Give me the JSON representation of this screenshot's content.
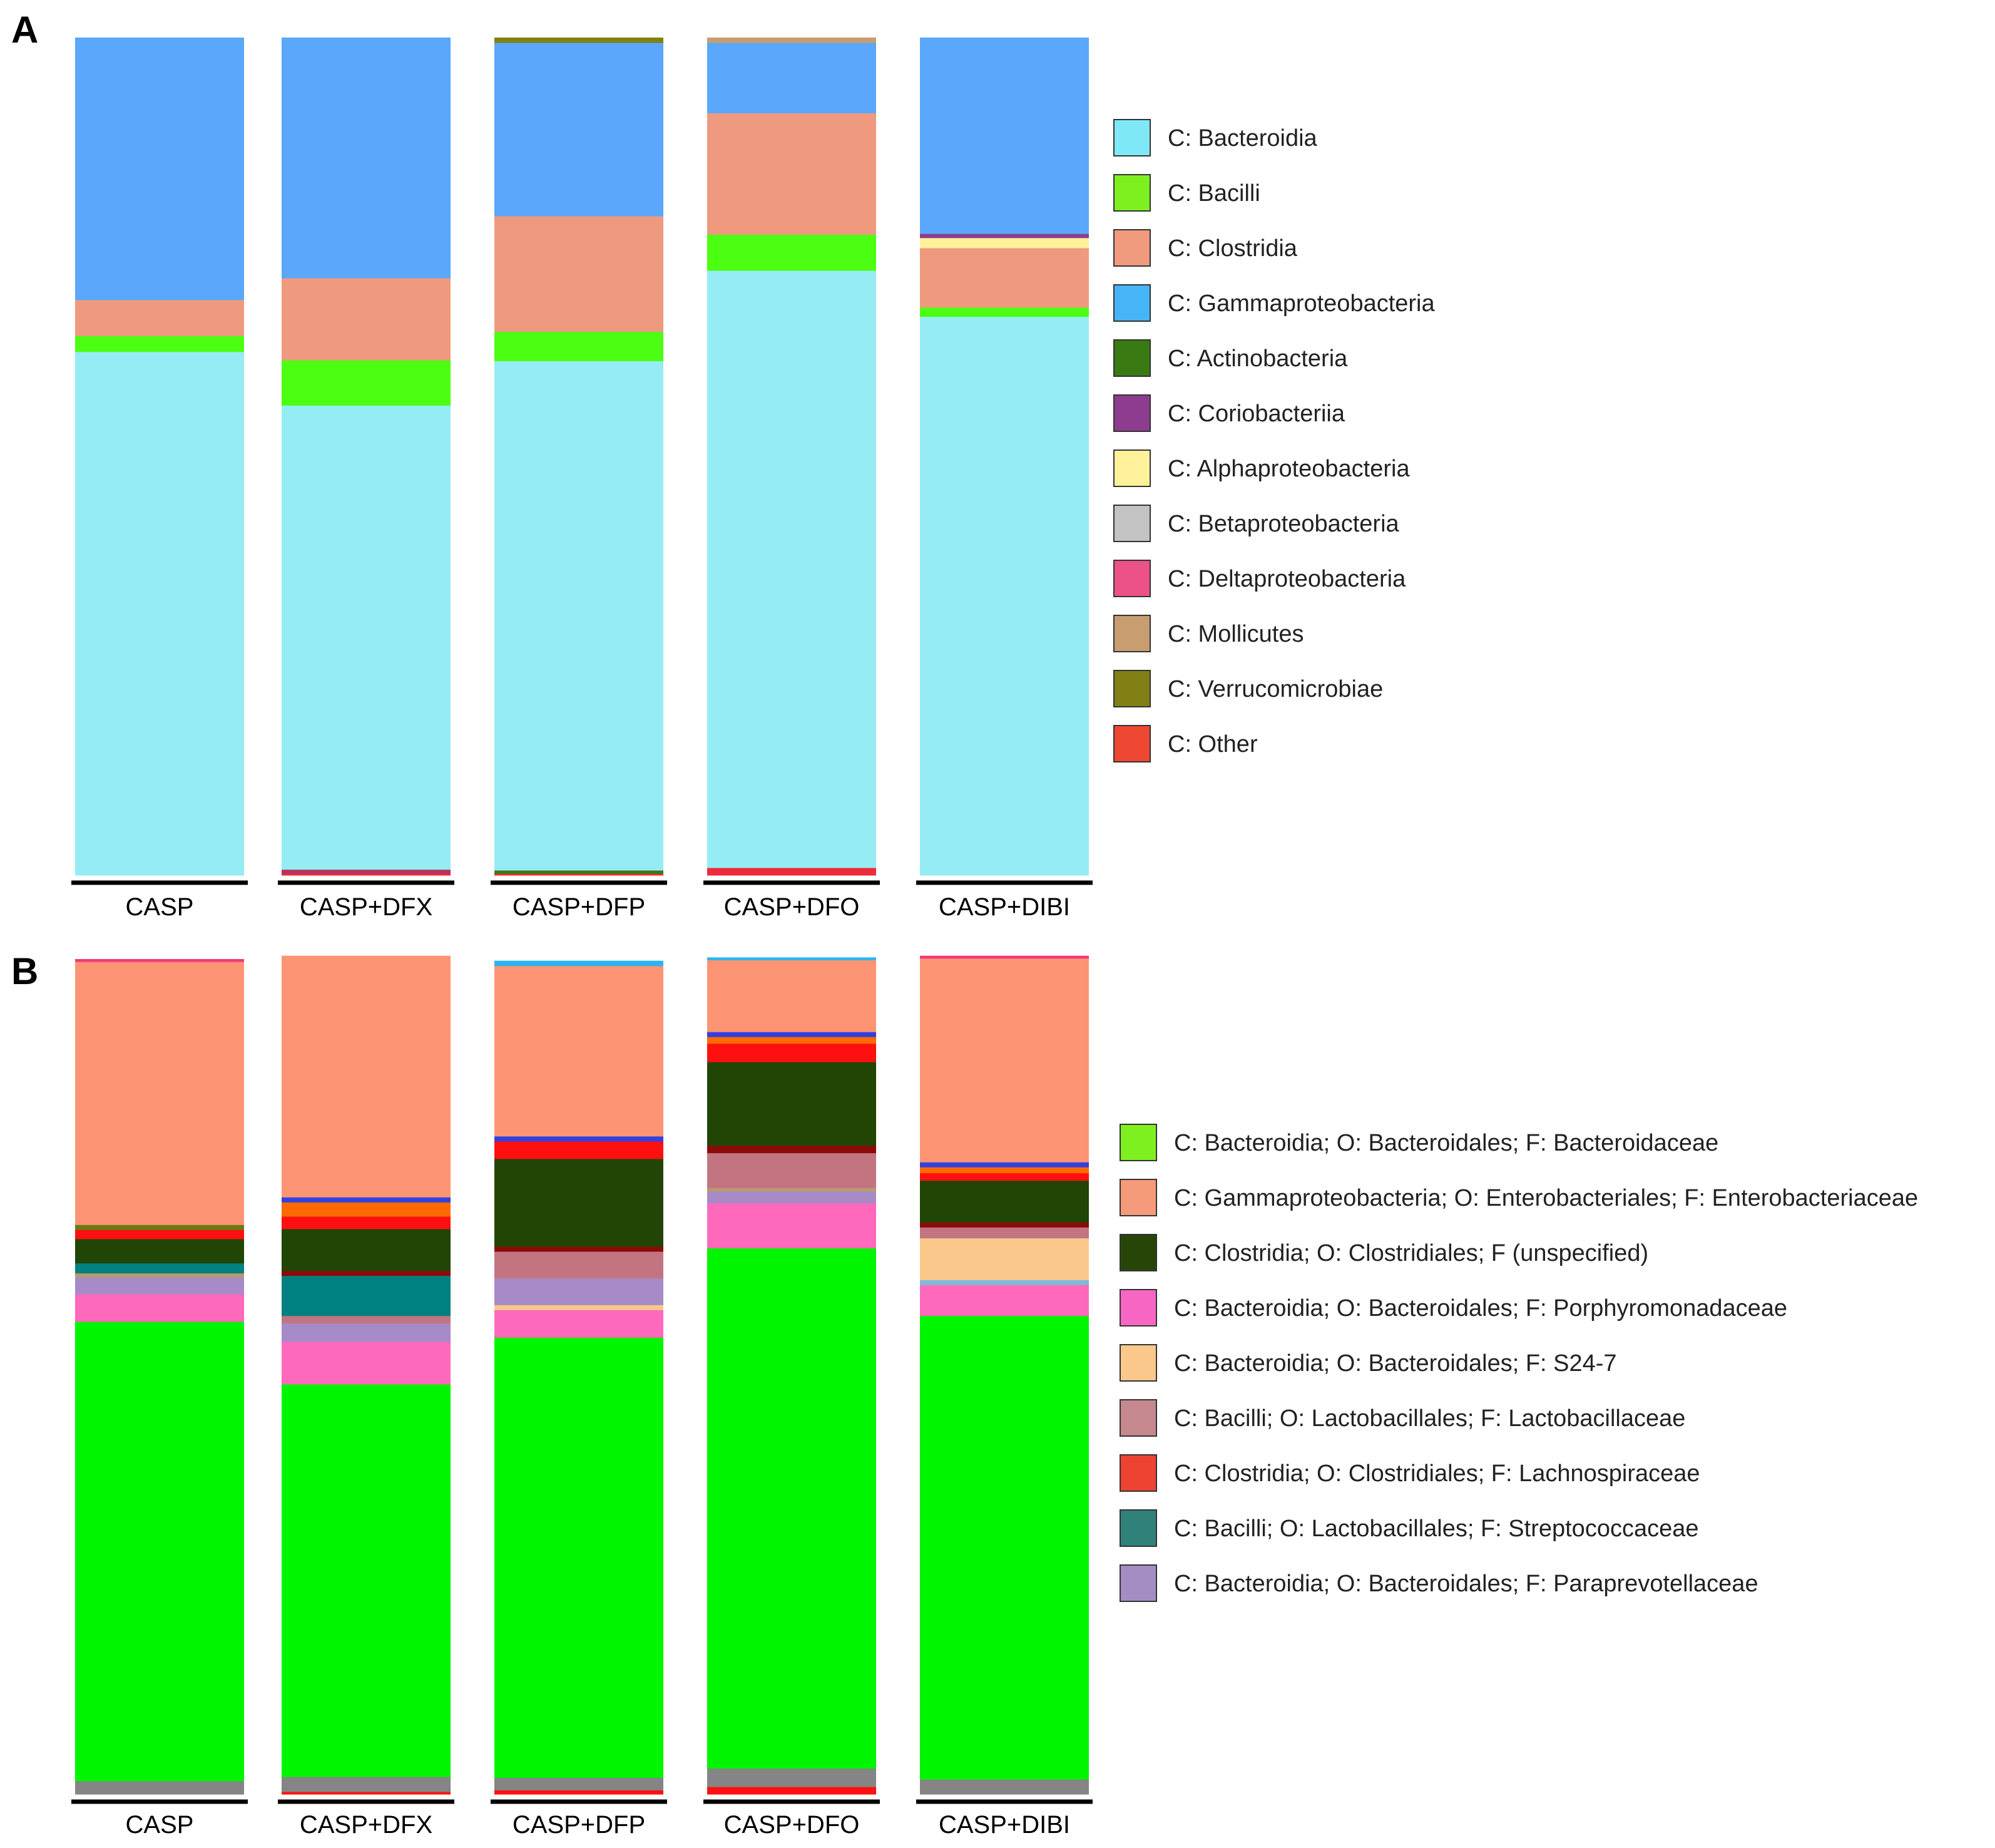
{
  "chart_data": [
    {
      "panel": "A",
      "type": "bar",
      "stacked": true,
      "normalized": true,
      "ylim": [
        0,
        100
      ],
      "categories": [
        "CASP",
        "CASP+DFX",
        "CASP+DFP",
        "CASP+DFO",
        "CASP+DIBI"
      ],
      "legend_position": "right",
      "legend": [
        {
          "label": "C: Bacteroidia",
          "color": "#7fe8f7"
        },
        {
          "label": "C: Bacilli",
          "color": "#7ef01f"
        },
        {
          "label": "C: Clostridia",
          "color": "#f09a7e"
        },
        {
          "label": "C: Gammaproteobacteria",
          "color": "#45b5f7"
        },
        {
          "label": "C: Actinobacteria",
          "color": "#3a7a12"
        },
        {
          "label": "C: Coriobacteriia",
          "color": "#8e3c8f"
        },
        {
          "label": "C: Alphaproteobacteria",
          "color": "#fff19a"
        },
        {
          "label": "C: Betaproteobacteria",
          "color": "#c3c3c3"
        },
        {
          "label": "C: Deltaproteobacteria",
          "color": "#ec5189"
        },
        {
          "label": "C: Mollicutes",
          "color": "#c89d6f"
        },
        {
          "label": "C: Verrucomicrobiae",
          "color": "#808014"
        },
        {
          "label": "C: Other",
          "color": "#ee4732"
        }
      ],
      "series": [
        {
          "name": "C: Other",
          "color": "#ee2a3a",
          "values": [
            0.0,
            0.2,
            0.2,
            0.9,
            0.0
          ]
        },
        {
          "name": "C: Deltaproteobacteria",
          "color": "#b8325e",
          "values": [
            0.0,
            0.5,
            0.0,
            0.0,
            0.0
          ]
        },
        {
          "name": "C: Actinobacteria",
          "color": "#3a7a12",
          "values": [
            0.0,
            0.0,
            0.4,
            0.0,
            0.0
          ]
        },
        {
          "name": "C: Bacteroidia",
          "color": "#96ecf4",
          "values": [
            62.5,
            55.4,
            60.8,
            71.3,
            66.7
          ]
        },
        {
          "name": "C: Bacilli",
          "color": "#4cff12",
          "values": [
            1.9,
            5.4,
            3.5,
            4.3,
            1.1
          ]
        },
        {
          "name": "C: Clostridia",
          "color": "#ef9a7e",
          "values": [
            4.3,
            9.8,
            13.8,
            14.5,
            7.1
          ]
        },
        {
          "name": "C: Alphaproteobacteria",
          "color": "#fff19a",
          "values": [
            0.0,
            0.0,
            0.0,
            0.0,
            1.2
          ]
        },
        {
          "name": "C: Coriobacteriia",
          "color": "#8e3c8f",
          "values": [
            0.0,
            0.0,
            0.0,
            0.0,
            0.5
          ]
        },
        {
          "name": "C: Gammaproteobacteria",
          "color": "#5aa7fb",
          "values": [
            31.3,
            28.7,
            20.7,
            8.4,
            23.4
          ]
        },
        {
          "name": "C: Mollicutes",
          "color": "#c89d6f",
          "values": [
            0.0,
            0.0,
            0.0,
            0.6,
            0.0
          ]
        },
        {
          "name": "C: Verrucomicrobiae",
          "color": "#808014",
          "values": [
            0.0,
            0.0,
            0.6,
            0.0,
            0.0
          ]
        }
      ]
    },
    {
      "panel": "B",
      "type": "bar",
      "stacked": true,
      "normalized": true,
      "ylim": [
        0,
        100
      ],
      "categories": [
        "CASP",
        "CASP+DFX",
        "CASP+DFP",
        "CASP+DFO",
        "CASP+DIBI"
      ],
      "legend_position": "right",
      "legend": [
        {
          "label": "C: Bacteroidia; O: Bacteroidales; F: Bacteroidaceae",
          "color": "#7ef01f"
        },
        {
          "label": "C: Gammaproteobacteria; O: Enterobacteriales; F: Enterobacteriaceae",
          "color": "#f59a7a"
        },
        {
          "label": "C: Clostridia; O: Clostridiales; F (unspecified)",
          "color": "#274507"
        },
        {
          "label": "C: Bacteroidia; O: Bacteroidales; F: Porphyromonadaceae",
          "color": "#f866c4"
        },
        {
          "label": "C: Bacteroidia; O: Bacteroidales; F: S24-7",
          "color": "#f9c88a"
        },
        {
          "label": "C: Bacilli; O: Lactobacillales; F: Lactobacillaceae",
          "color": "#c4888e"
        },
        {
          "label": "C: Clostridia; O: Clostridiales; F: Lachnospiraceae",
          "color": "#ee4332"
        },
        {
          "label": "C: Bacilli; O: Lactobacillales; F: Streptococcaceae",
          "color": "#2f817a"
        },
        {
          "label": "C: Bacteroidia; O: Bacteroidales; F: Paraprevotellaceae",
          "color": "#a48dc3"
        }
      ],
      "series": [
        {
          "name": "Other (red)",
          "color": "#ff1010",
          "values": [
            0.0,
            0.3,
            0.5,
            0.9,
            0.0
          ]
        },
        {
          "name": "Other (gray)",
          "color": "#858585",
          "values": [
            1.6,
            1.8,
            1.5,
            2.2,
            1.8
          ]
        },
        {
          "name": "C: Bacteroidia; O: Bacteroidales; F: Bacteroidaceae",
          "color": "#00f500",
          "values": [
            55.0,
            47.0,
            52.7,
            62.3,
            55.5
          ]
        },
        {
          "name": "C: Bacteroidia; O: Bacteroidales; F: Porphyromonadaceae",
          "color": "#ff69bb",
          "values": [
            3.3,
            5.1,
            3.3,
            5.4,
            3.7
          ]
        },
        {
          "name": "Other (light blue)",
          "color": "#7fb8d8",
          "values": [
            0.0,
            0.0,
            0.0,
            0.0,
            0.6
          ]
        },
        {
          "name": "C: Bacteroidia; O: Bacteroidales; F: S24-7",
          "color": "#f9c88a",
          "values": [
            0.0,
            0.0,
            0.6,
            0.0,
            5.0
          ]
        },
        {
          "name": "C: Bacteroidia; O: Bacteroidales; F: Paraprevotellaceae",
          "color": "#a78ac8",
          "values": [
            2.0,
            2.2,
            3.2,
            1.4,
            0.0
          ]
        },
        {
          "name": "Other (tan)",
          "color": "#b89a6e",
          "values": [
            0.5,
            0.0,
            0.0,
            0.4,
            0.0
          ]
        },
        {
          "name": "C: Bacilli; O: Lactobacillales; F: Lactobacillaceae",
          "color": "#c27580",
          "values": [
            0.0,
            0.9,
            3.2,
            4.2,
            1.3
          ]
        },
        {
          "name": "C: Bacilli; O: Lactobacillales; F: Streptococcaceae",
          "color": "#008080",
          "values": [
            1.2,
            4.8,
            0.0,
            0.0,
            0.0
          ]
        },
        {
          "name": "Other (dark red)",
          "color": "#8b0a0a",
          "values": [
            0.0,
            0.6,
            0.6,
            0.9,
            0.6
          ]
        },
        {
          "name": "C: Clostridia; O: Clostridiales; F (unspecified)",
          "color": "#214504",
          "values": [
            2.9,
            5.0,
            10.5,
            10.0,
            5.0
          ]
        },
        {
          "name": "C: Clostridia; O: Clostridiales; F: Lachnospiraceae",
          "color": "#ff1010",
          "values": [
            1.1,
            1.5,
            2.1,
            2.2,
            0.9
          ]
        },
        {
          "name": "Other (orange)",
          "color": "#ff6a00",
          "values": [
            0.0,
            1.7,
            0.0,
            0.8,
            0.7
          ]
        },
        {
          "name": "Other (olive)",
          "color": "#6b7a12",
          "values": [
            0.6,
            0.0,
            0.0,
            0.0,
            0.0
          ]
        },
        {
          "name": "Other (blue)",
          "color": "#3340e0",
          "values": [
            0.0,
            0.6,
            0.6,
            0.6,
            0.6
          ]
        },
        {
          "name": "C: Gammaproteobacteria; O: Enterobacteriales; F: Enterobacteriaceae",
          "color": "#fd9474",
          "values": [
            31.5,
            28.9,
            20.4,
            8.6,
            24.4
          ]
        },
        {
          "name": "Other (pink)",
          "color": "#f5377b",
          "values": [
            0.3,
            0.0,
            0.0,
            0.0,
            0.3
          ]
        },
        {
          "name": "Other (sky)",
          "color": "#2cb4f0",
          "values": [
            0.0,
            0.0,
            0.6,
            0.3,
            0.0
          ]
        }
      ]
    }
  ]
}
